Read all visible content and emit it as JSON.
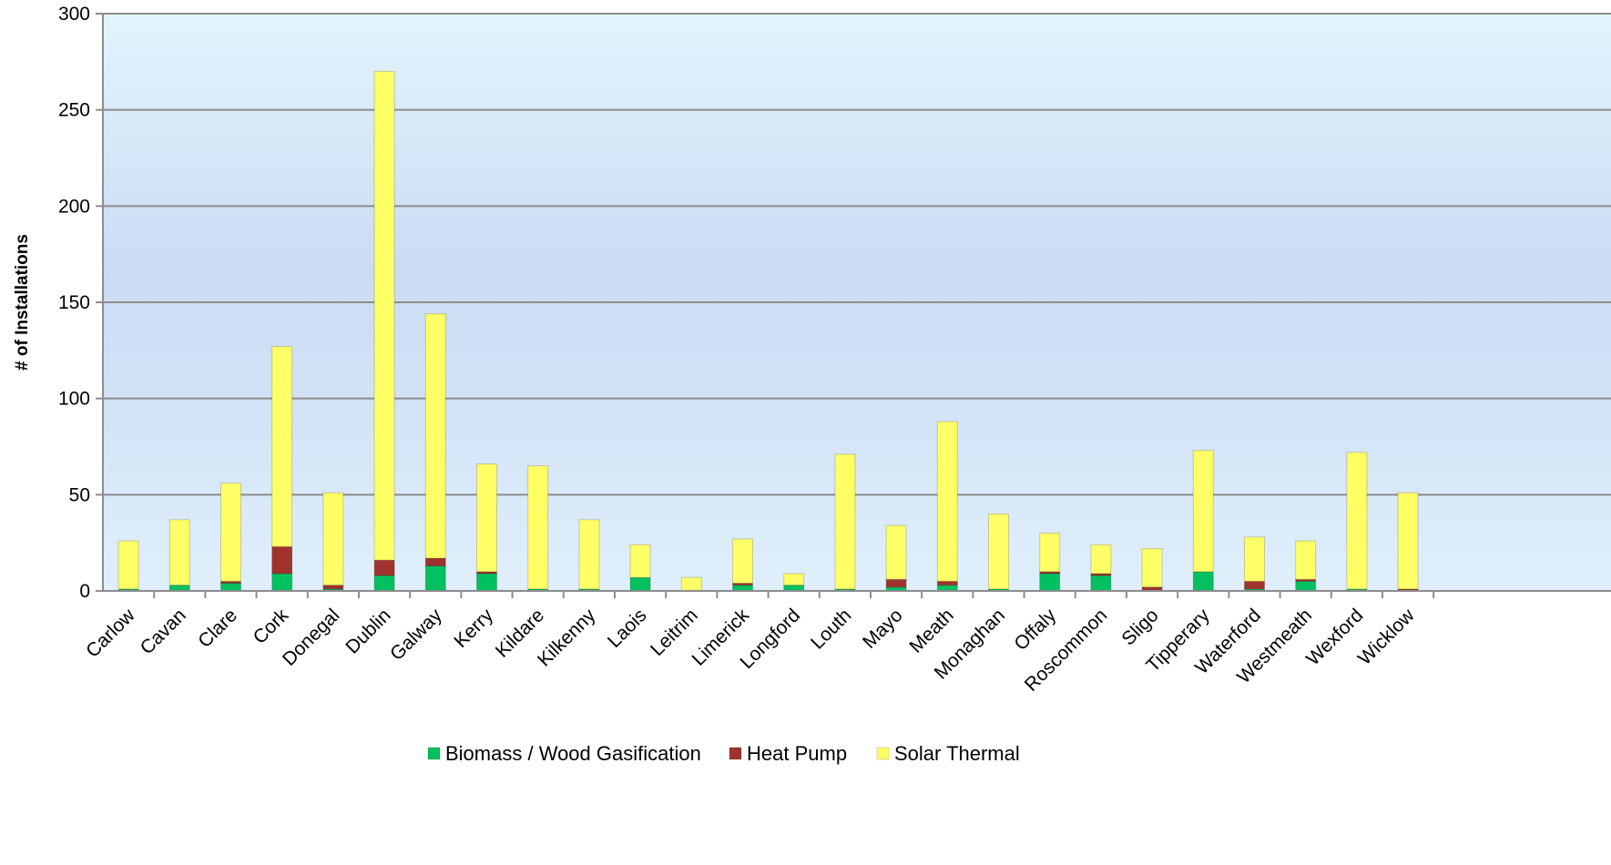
{
  "chart_data": {
    "type": "bar",
    "stacked": true,
    "title": "",
    "xlabel": "",
    "ylabel": "# of Installations",
    "ylim": [
      0,
      300
    ],
    "yticks": [
      0,
      50,
      100,
      150,
      200,
      250,
      300
    ],
    "grid": true,
    "legend_position": "bottom",
    "categories": [
      "Carlow",
      "Cavan",
      "Clare",
      "Cork",
      "Donegal",
      "Dublin",
      "Galway",
      "Kerry",
      "Kildare",
      "Kilkenny",
      "Laois",
      "Leitrim",
      "Limerick",
      "Longford",
      "Louth",
      "Mayo",
      "Meath",
      "Monaghan",
      "Offaly",
      "Roscommon",
      "Sligo",
      "Tipperary",
      "Waterford",
      "Westmeath",
      "Wexford",
      "Wicklow"
    ],
    "series": [
      {
        "name": "Biomass / Wood Gasification",
        "color": "#00C060",
        "values": [
          1,
          3,
          4,
          9,
          1,
          8,
          13,
          9,
          1,
          1,
          7,
          0,
          3,
          3,
          1,
          2,
          3,
          1,
          9,
          8,
          0,
          10,
          1,
          5,
          1,
          0
        ]
      },
      {
        "name": "Heat Pump",
        "color": "#A0322E",
        "values": [
          0,
          0,
          1,
          14,
          2,
          8,
          4,
          1,
          0,
          0,
          0,
          0,
          1,
          0,
          0,
          4,
          2,
          0,
          1,
          1,
          2,
          0,
          4,
          1,
          0,
          1
        ]
      },
      {
        "name": "Solar Thermal",
        "color": "#FFFF66",
        "values": [
          25,
          34,
          51,
          104,
          48,
          254,
          127,
          56,
          64,
          36,
          17,
          7,
          23,
          6,
          70,
          28,
          83,
          39,
          20,
          15,
          20,
          63,
          23,
          20,
          71,
          50
        ]
      }
    ]
  }
}
